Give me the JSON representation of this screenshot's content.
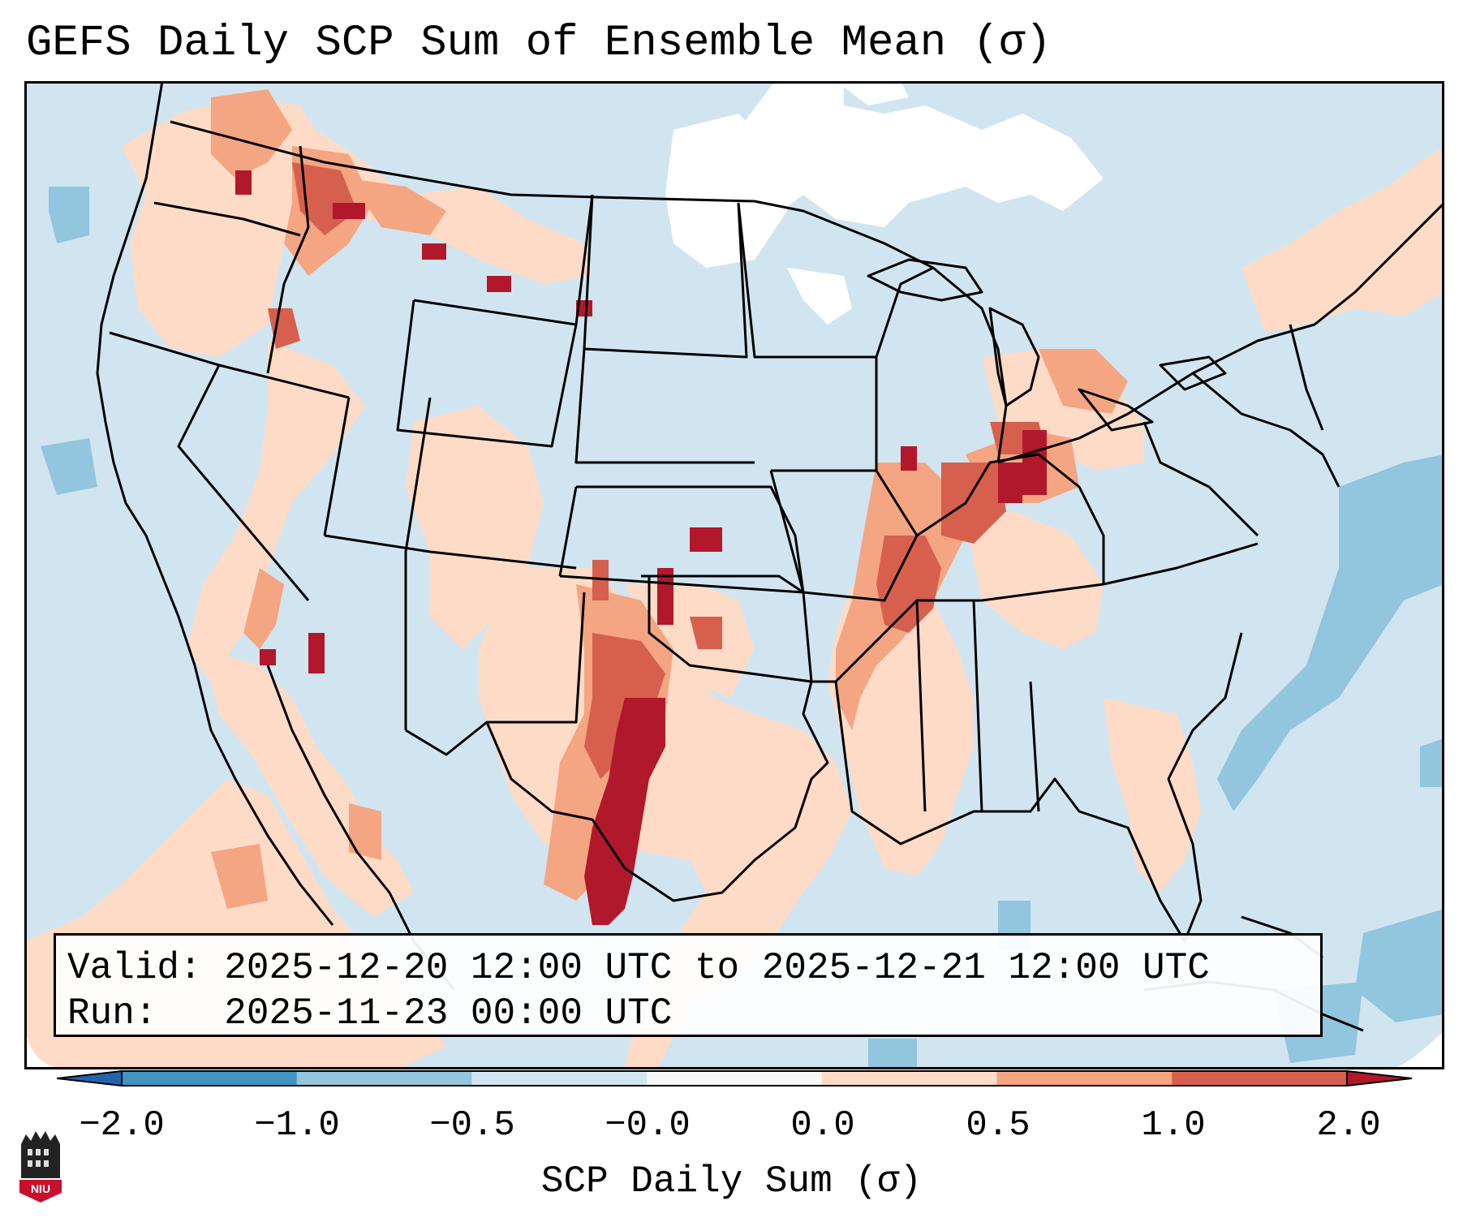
{
  "title": "GEFS Daily SCP Sum of Ensemble Mean (σ)",
  "legend": {
    "valid_label": "Valid:",
    "valid_value": "2025-12-20 12:00 UTC to 2025-12-21 12:00 UTC",
    "run_label": "Run:",
    "run_value": "2025-11-23 00:00 UTC"
  },
  "colorbar": {
    "label": "SCP Daily Sum (σ)",
    "ticks": [
      "−2.0",
      "−1.0",
      "−0.5",
      "−0.0",
      "0.0",
      "0.5",
      "1.0",
      "2.0"
    ],
    "colors": {
      "under": "#2166ac",
      "bin_neg2_neg1": "#4393c3",
      "bin_neg1_neg05": "#92c5de",
      "bin_neg05_0": "#d1e5f0",
      "bin_zero": "#f7f7f7",
      "bin_0_05": "#fddbc7",
      "bin_05_1": "#f4a582",
      "bin_1_2": "#d6604d",
      "over": "#b2182b"
    }
  },
  "map": {
    "background": "#d1e5f0",
    "outside_domain": "#ffffff",
    "regions": [
      {
        "name": "Pacific Northwest",
        "category": "0.0 to 0.5"
      },
      {
        "name": "Idaho / Montana border",
        "category": "1.0 to 2.0"
      },
      {
        "name": "Southern Plains / West Texas",
        "category": "above 2.0"
      },
      {
        "name": "Central Kansas",
        "category": "above 2.0"
      },
      {
        "name": "Ohio Valley / Indiana",
        "category": "above 2.0"
      },
      {
        "name": "Lower Mississippi Valley",
        "category": "0.0 to 0.5"
      },
      {
        "name": "Western Atlantic",
        "category": "-1.0 to -0.5"
      }
    ]
  },
  "logo": {
    "text": "NIU",
    "color": "#c8102e"
  }
}
